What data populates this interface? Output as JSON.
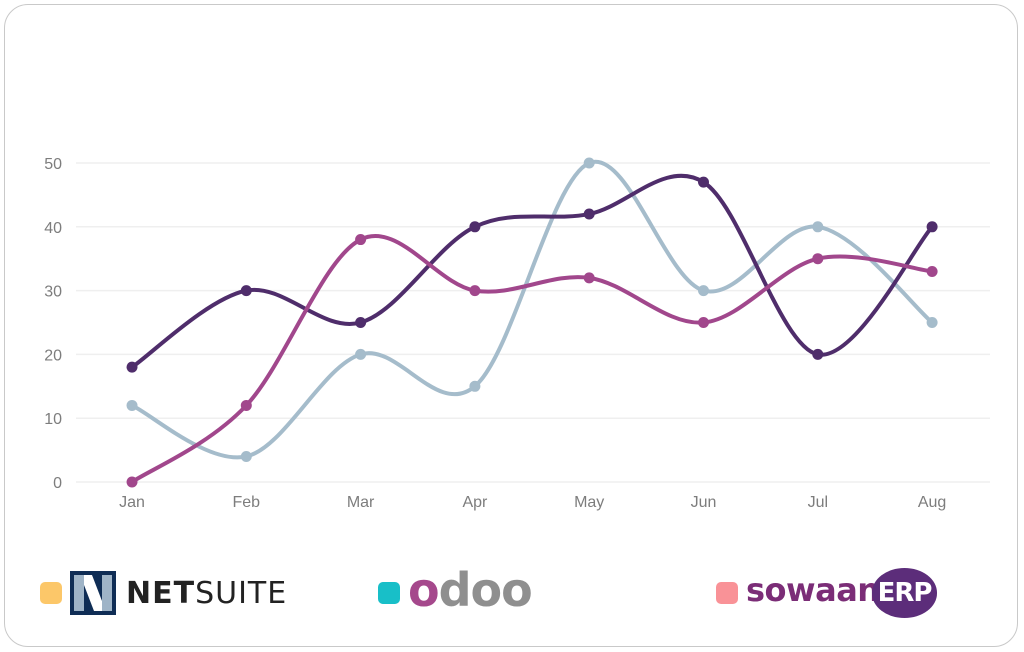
{
  "chart_data": {
    "type": "line",
    "categories": [
      "Jan",
      "Feb",
      "Mar",
      "Apr",
      "May",
      "Jun",
      "Jul",
      "Aug"
    ],
    "ylim": [
      0,
      50
    ],
    "yticks": [
      0,
      10,
      20,
      30,
      40,
      50
    ],
    "grid": true,
    "series": [
      {
        "name": "NETSUITE",
        "color": "#4f2d6b",
        "values": [
          18,
          30,
          25,
          40,
          42,
          47,
          20,
          40
        ]
      },
      {
        "name": "odoo",
        "color": "#a5bccb",
        "values": [
          12,
          4,
          20,
          15,
          50,
          30,
          40,
          25
        ]
      },
      {
        "name": "SowaanERP",
        "color": "#a1478c",
        "values": [
          0,
          12,
          38,
          30,
          32,
          25,
          35,
          33
        ]
      }
    ]
  },
  "legend": [
    {
      "label": "NETSUITE",
      "label_bold": "NET",
      "label_light": "SUITE",
      "swatch_color": "#fcc769",
      "icon": "netsuite-logo-icon"
    },
    {
      "label": "odoo",
      "label_first": "o",
      "label_rest": "doo",
      "swatch_color": "#18bfc8",
      "icon": "odoo-logo"
    },
    {
      "label": "SowaanERP",
      "label_main": "sowaan",
      "label_badge": "ERP",
      "swatch_color": "#f99297",
      "icon": "sowaan-erp-logo"
    }
  ]
}
